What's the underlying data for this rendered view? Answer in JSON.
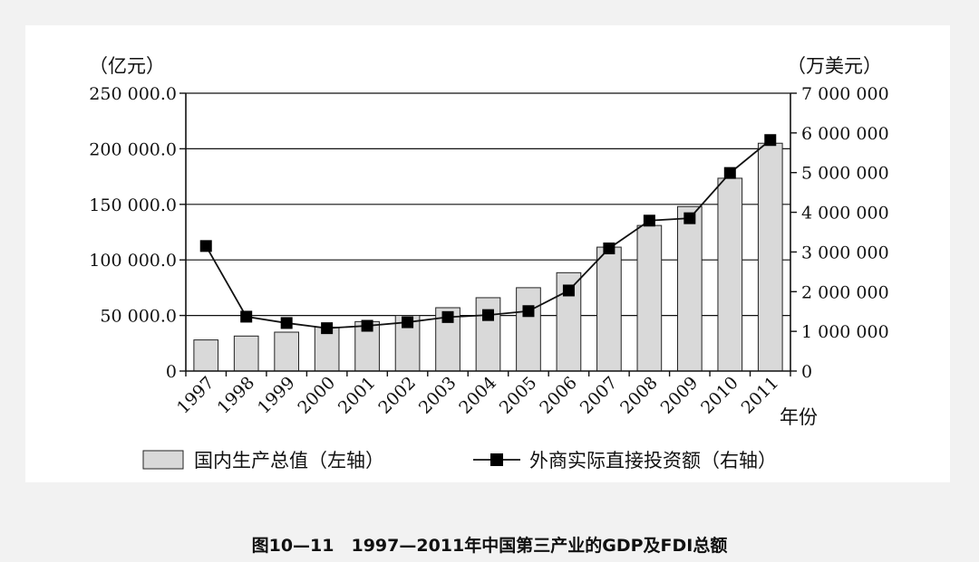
{
  "caption": "图10—11　1997—2011年中国第三产业的GDP及FDI总额",
  "chart_data": {
    "type": "bar",
    "title": "",
    "categories": [
      "1997",
      "1998",
      "1999",
      "2000",
      "2001",
      "2002",
      "2003",
      "2004",
      "2005",
      "2006",
      "2007",
      "2008",
      "2009",
      "2010",
      "2011"
    ],
    "xlabel": "年份",
    "ylabel_left": "（亿元）",
    "ylabel_right": "（万美元）",
    "ylim_left": [
      0,
      250000
    ],
    "ylim_right": [
      0,
      7000000
    ],
    "yticks_left": [
      "0",
      "50 000.0",
      "100 000.0",
      "150 000.0",
      "200 000.0",
      "250 000.0"
    ],
    "yticks_right": [
      "0",
      "1 000 000",
      "2 000 000",
      "3 000 000",
      "4 000 000",
      "5 000 000",
      "6 000 000",
      "7 000 000"
    ],
    "grid": true,
    "legend_position": "bottom",
    "series": [
      {
        "name": "国内生产总值（左轴）",
        "type": "bar",
        "axis": "left",
        "color": "#d9d9d9",
        "values": [
          28000,
          31500,
          35000,
          39500,
          44500,
          50000,
          57000,
          66000,
          75000,
          88500,
          111500,
          131000,
          148000,
          173500,
          205000
        ]
      },
      {
        "name": "外商实际直接投资额（右轴）",
        "type": "line",
        "axis": "right",
        "color": "#000000",
        "values": [
          3150000,
          1370000,
          1210000,
          1080000,
          1140000,
          1230000,
          1360000,
          1410000,
          1510000,
          2030000,
          3090000,
          3790000,
          3850000,
          4990000,
          5820000
        ]
      }
    ]
  }
}
